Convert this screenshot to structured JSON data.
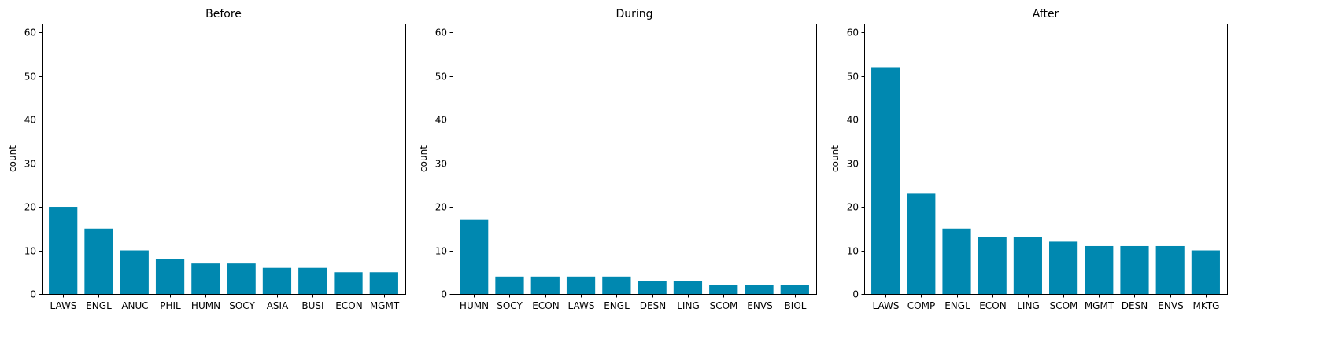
{
  "chart_data": [
    {
      "type": "bar",
      "title": "Before",
      "ylabel": "count",
      "xlabel": "",
      "ylim": [
        0,
        62
      ],
      "yticks": [
        0,
        10,
        20,
        30,
        40,
        50,
        60
      ],
      "bar_color": "#0088b0",
      "categories": [
        "LAWS",
        "ENGL",
        "ANUC",
        "PHIL",
        "HUMN",
        "SOCY",
        "ASIA",
        "BUSI",
        "ECON",
        "MGMT"
      ],
      "values": [
        20,
        15,
        10,
        8,
        7,
        7,
        6,
        6,
        5,
        5
      ]
    },
    {
      "type": "bar",
      "title": "During",
      "ylabel": "count",
      "xlabel": "",
      "ylim": [
        0,
        62
      ],
      "yticks": [
        0,
        10,
        20,
        30,
        40,
        50,
        60
      ],
      "bar_color": "#0088b0",
      "categories": [
        "HUMN",
        "SOCY",
        "ECON",
        "LAWS",
        "ENGL",
        "DESN",
        "LING",
        "SCOM",
        "ENVS",
        "BIOL"
      ],
      "values": [
        17,
        4,
        4,
        4,
        4,
        3,
        3,
        2,
        2,
        2
      ]
    },
    {
      "type": "bar",
      "title": "After",
      "ylabel": "count",
      "xlabel": "",
      "ylim": [
        0,
        62
      ],
      "yticks": [
        0,
        10,
        20,
        30,
        40,
        50,
        60
      ],
      "bar_color": "#0088b0",
      "categories": [
        "LAWS",
        "COMP",
        "ENGL",
        "ECON",
        "LING",
        "SCOM",
        "MGMT",
        "DESN",
        "ENVS",
        "MKTG"
      ],
      "values": [
        52,
        23,
        15,
        13,
        13,
        12,
        11,
        11,
        11,
        10
      ]
    }
  ]
}
